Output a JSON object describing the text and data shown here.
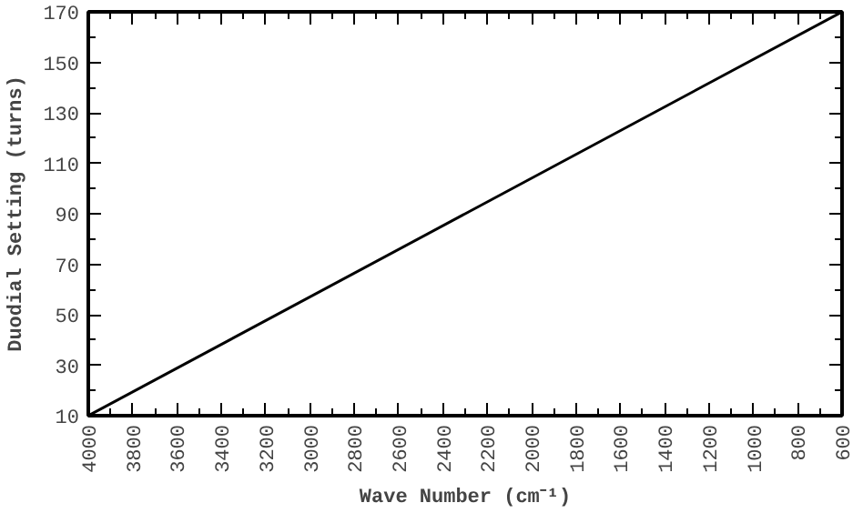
{
  "chart_data": {
    "type": "line",
    "xlabel": "Wave Number (cm⁻¹)",
    "ylabel": "Duodial Setting (turns)",
    "x": [
      4000,
      2300,
      600
    ],
    "series": [
      {
        "color": "#000000",
        "values": [
          10,
          90,
          170
        ]
      }
    ],
    "xlim": [
      4000,
      600
    ],
    "ylim": [
      10,
      170
    ],
    "xticks": [
      4000,
      3800,
      3600,
      3400,
      3200,
      3000,
      2800,
      2600,
      2400,
      2200,
      2000,
      1800,
      1600,
      1400,
      1200,
      1000,
      800,
      600
    ],
    "yticks": [
      10,
      30,
      50,
      70,
      90,
      110,
      130,
      150,
      170
    ],
    "marker": "none",
    "line_style": "solid"
  }
}
